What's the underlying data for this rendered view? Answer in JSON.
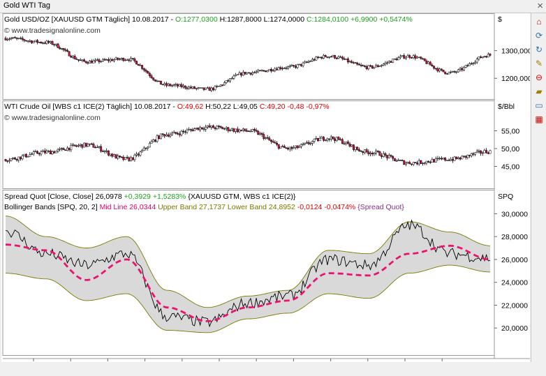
{
  "window": {
    "title": "Gold WTI Tag"
  },
  "colors": {
    "up": "#1ca21c",
    "down": "#e00000",
    "candle_up": "#ffffff",
    "candle_down": "#c8143c",
    "mid": "#e8146e",
    "band": "#7a7a00",
    "band_fill": "#d9d9d9"
  },
  "toolbar": {
    "icons": [
      "close-icon",
      "house-icon",
      "refresh-icon",
      "recycle-icon",
      "note-icon",
      "minus-circle-icon",
      "tag-icon",
      "comment-icon",
      "grid-icon"
    ]
  },
  "gold": {
    "header": {
      "name": "Gold USD/OZ [XAUUSD GTM Täglich]",
      "date": "10.08.2017",
      "o": "O:1277,0300",
      "h": "H:1287,8000",
      "l": "L:1274,0000",
      "c": "C:1284,0100",
      "chg": "+6,9900",
      "pct": "+0,5474%"
    },
    "watermark": "© www.tradesignalonline.com",
    "unit": "$",
    "ticks": [
      "1300,0000",
      "1200,0000"
    ]
  },
  "wti": {
    "header": {
      "name": "WTI Crude Oil [WBS c1 ICE(2)  Täglich]",
      "date": "10.08.2017",
      "o": "O:49,62",
      "h": "H:50,22",
      "l": "L:49,05",
      "c": "C:49,20",
      "chg": "-0,48",
      "pct": "-0,97%"
    },
    "watermark": "© www.tradesignalonline.com",
    "unit": "$/Bbl",
    "ticks": [
      "55,00",
      "50,00",
      "45,00"
    ]
  },
  "spread": {
    "header1": {
      "name": "Spread Quot [Close, Close]",
      "val": "26,0978",
      "chg": "+0,3929",
      "pct": "+1,5283%",
      "src": "{XAUUSD GTM, WBS c1 ICE(2)}"
    },
    "header2": {
      "name": "Bollinger Bands [SPQ, 20, 2]",
      "mid": "Mid Line 26,0344",
      "upper": "Upper Band 27,1737",
      "lower": "Lower Band 24,8952",
      "chg": "-0,0124",
      "pct": "-0,0474%",
      "src": "{Spread Quot}"
    },
    "unit": "SPQ",
    "ticks": [
      "30,0000",
      "28,0000",
      "26,0000",
      "24,0000",
      "22,0000",
      "20,0000"
    ]
  },
  "xaxis": {
    "labels": [
      "Sep",
      "Okt",
      "Nov",
      "Dez",
      "2017",
      "Feb",
      "Mrz",
      "Apr",
      "Mai",
      "Jun",
      "Jul",
      "Aug"
    ]
  },
  "chart_data": [
    {
      "type": "line",
      "title": "Gold USD/OZ [XAUUSD GTM Täglich]",
      "ylabel": "$",
      "x": [
        "Aug-2016",
        "Sep",
        "Okt",
        "Nov",
        "Dez",
        "2017",
        "Feb",
        "Mrz",
        "Apr",
        "Mai",
        "Jun",
        "Jul",
        "Aug-2017"
      ],
      "series": [
        {
          "name": "Gold USD/OZ",
          "values": [
            1345,
            1330,
            1260,
            1270,
            1175,
            1160,
            1220,
            1240,
            1280,
            1240,
            1280,
            1220,
            1284
          ]
        }
      ],
      "ylim": [
        1140,
        1390
      ]
    },
    {
      "type": "line",
      "title": "WTI Crude Oil [WBS c1 ICE(2)  Täglich]",
      "ylabel": "$/Bbl",
      "x": [
        "Aug-2016",
        "Sep",
        "Okt",
        "Nov",
        "Dez",
        "2017",
        "Feb",
        "Mrz",
        "Apr",
        "Mai",
        "Jun",
        "Jul",
        "Aug-2017"
      ],
      "series": [
        {
          "name": "WTI Crude Oil",
          "values": [
            47,
            49,
            51,
            47,
            54,
            56,
            55,
            50,
            53,
            49,
            46,
            47,
            49.2
          ]
        }
      ],
      "ylim": [
        40,
        60
      ]
    },
    {
      "type": "line",
      "title": "Spread Quot [Close, Close]",
      "ylabel": "SPQ",
      "x": [
        "Aug-2016",
        "Sep",
        "Okt",
        "Nov",
        "Dez",
        "2017",
        "Feb",
        "Mrz",
        "Apr",
        "Mai",
        "Jun",
        "Jul",
        "Aug-2017"
      ],
      "series": [
        {
          "name": "Spread Quot",
          "values": [
            28.5,
            26.5,
            25.5,
            26.5,
            21.0,
            20.5,
            22.2,
            22.8,
            26.0,
            25.5,
            29.0,
            26.5,
            26.1
          ]
        },
        {
          "name": "Mid Line",
          "values": [
            27.3,
            26.8,
            24.2,
            26.0,
            21.8,
            20.6,
            21.8,
            22.4,
            24.8,
            24.6,
            26.5,
            27.2,
            26.0
          ]
        },
        {
          "name": "Upper Band",
          "values": [
            29.8,
            28.0,
            27.0,
            28.0,
            23.3,
            21.8,
            22.8,
            23.3,
            26.8,
            26.5,
            29.3,
            28.4,
            27.2
          ]
        },
        {
          "name": "Lower Band",
          "values": [
            24.8,
            24.3,
            22.4,
            23.0,
            19.8,
            19.6,
            20.8,
            21.3,
            23.0,
            22.6,
            24.8,
            25.5,
            24.9
          ]
        }
      ],
      "ylim": [
        18,
        31
      ]
    }
  ]
}
